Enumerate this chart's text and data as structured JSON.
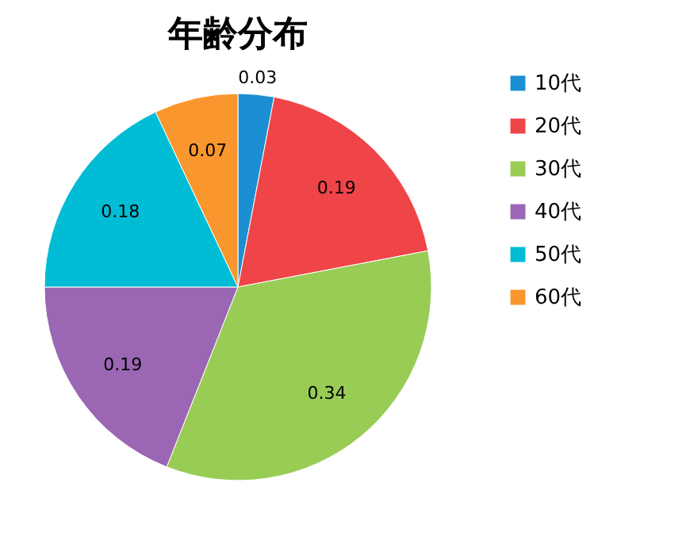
{
  "chart_data": {
    "type": "pie",
    "title": "年齢分布",
    "categories": [
      "10代",
      "20代",
      "30代",
      "40代",
      "50代",
      "60代"
    ],
    "values": [
      0.03,
      0.19,
      0.34,
      0.19,
      0.18,
      0.07
    ],
    "colors": [
      "#1b8fd1",
      "#ef4448",
      "#99cc55",
      "#9b66b3",
      "#00bcd4",
      "#f9962d"
    ],
    "data_labels": true,
    "legend": "right"
  }
}
